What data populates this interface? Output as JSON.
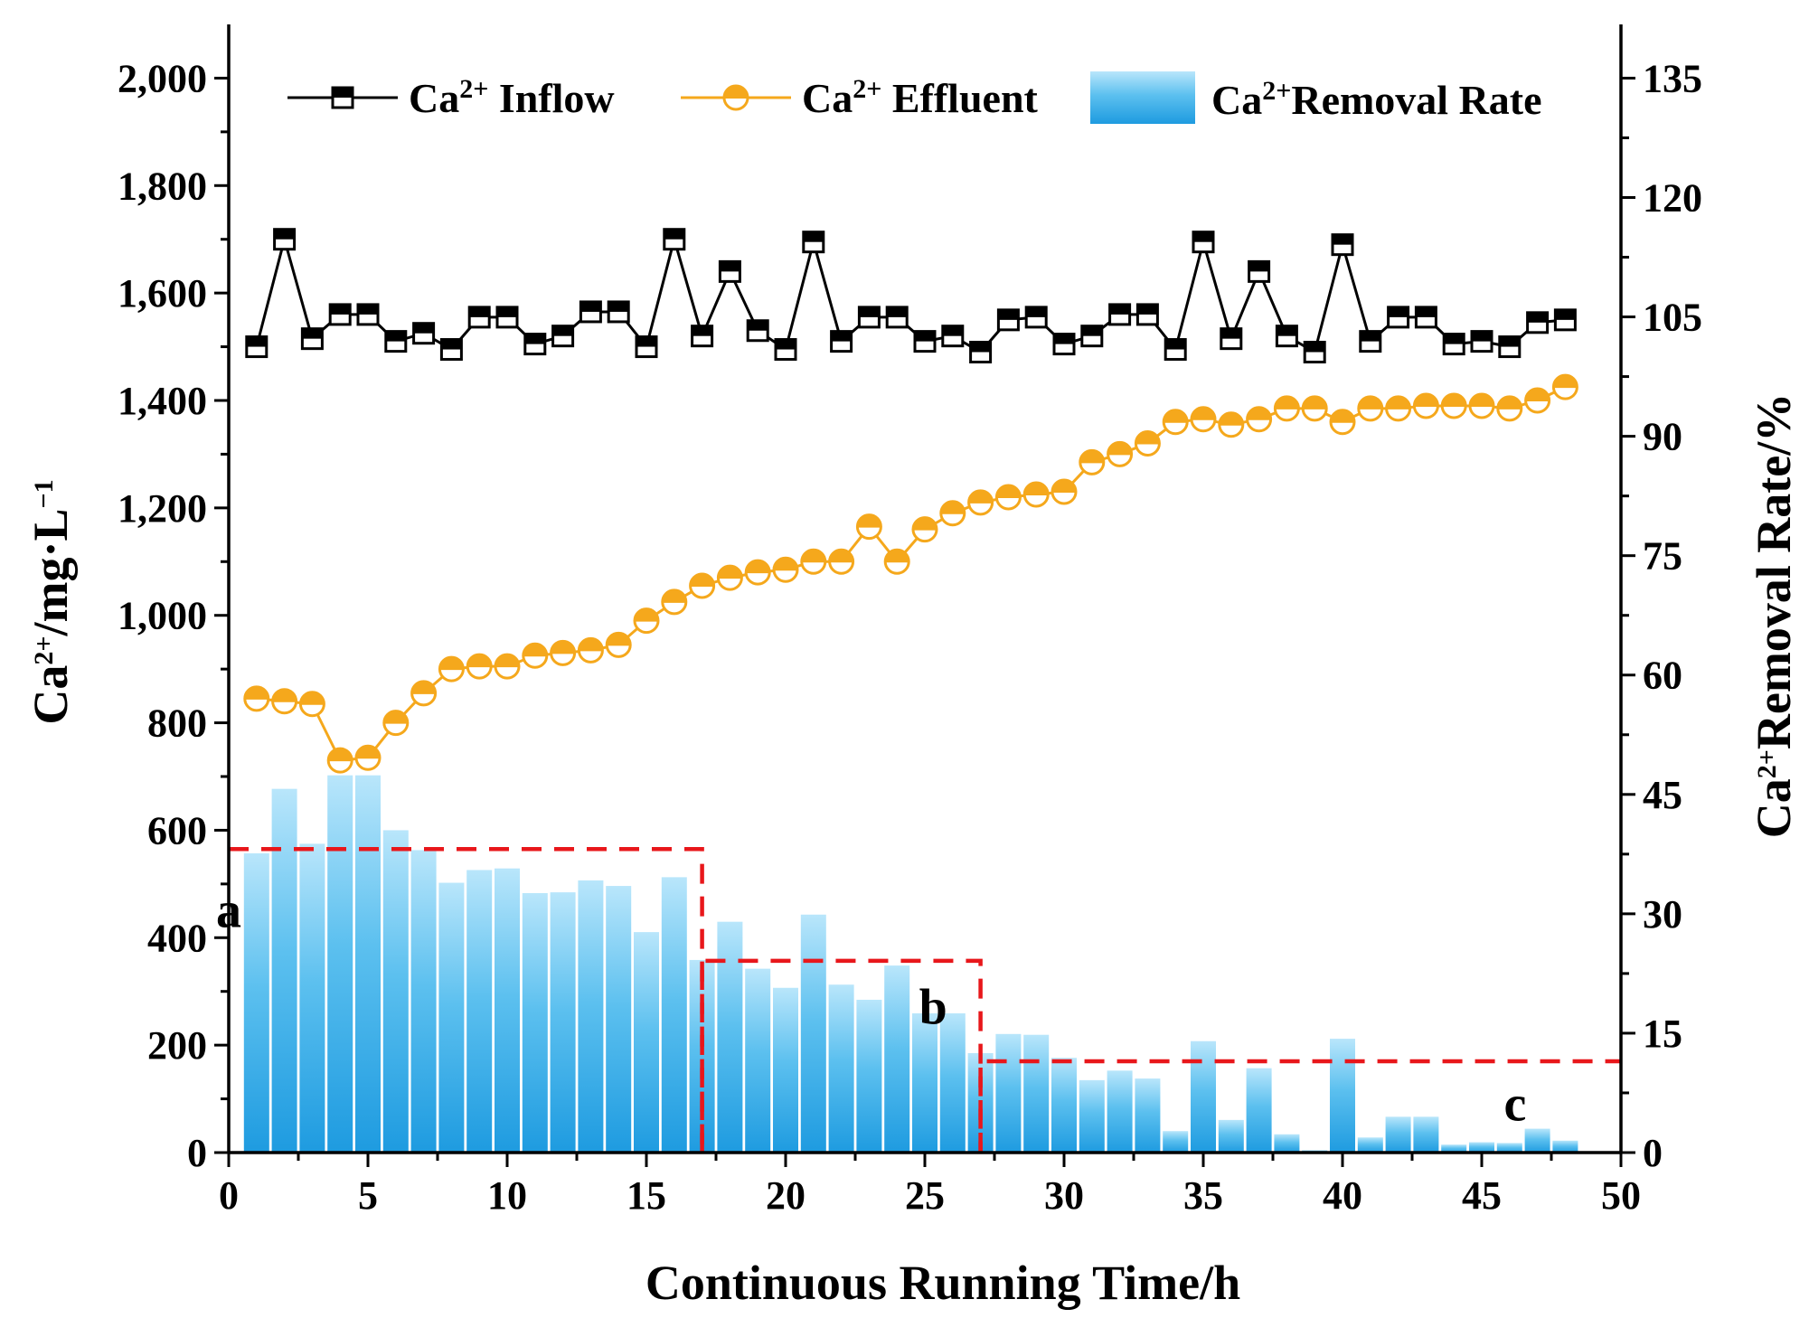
{
  "chart_data": {
    "type": "bar+line",
    "xlabel": "Continuous Running Time/h",
    "ylabel_left": {
      "base": "Ca",
      "sup": "2+",
      "rest": "/mg·L",
      "sup2": "−1"
    },
    "ylabel_right": {
      "base": "Ca",
      "sup": "2+",
      "rest": "Removal Rate/%"
    },
    "xlim": [
      0,
      50
    ],
    "ylim_left": [
      0,
      2100
    ],
    "ylim_right": [
      0,
      141.75
    ],
    "x_ticks": [
      0,
      5,
      10,
      15,
      20,
      25,
      30,
      35,
      40,
      45,
      50
    ],
    "x_tick_labels": [
      "0",
      "5",
      "10",
      "15",
      "20",
      "25",
      "30",
      "35",
      "40",
      "45",
      "50"
    ],
    "y_left_ticks": [
      0,
      200,
      400,
      600,
      800,
      1000,
      1200,
      1400,
      1600,
      1800,
      2000
    ],
    "y_left_tick_labels": [
      "0",
      "200",
      "400",
      "600",
      "800",
      "1,000",
      "1,200",
      "1,400",
      "1,600",
      "1,800",
      "2,000"
    ],
    "y_right_ticks": [
      0,
      15,
      30,
      45,
      60,
      75,
      90,
      105,
      120,
      135
    ],
    "y_right_tick_labels": [
      "0",
      "15",
      "30",
      "45",
      "60",
      "75",
      "90",
      "105",
      "120",
      "135"
    ],
    "x": [
      1,
      2,
      3,
      4,
      5,
      6,
      7,
      8,
      9,
      10,
      11,
      12,
      13,
      14,
      15,
      16,
      17,
      18,
      19,
      20,
      21,
      22,
      23,
      24,
      25,
      26,
      27,
      28,
      29,
      30,
      31,
      32,
      33,
      34,
      35,
      36,
      37,
      38,
      39,
      40,
      41,
      42,
      43,
      44,
      45,
      46,
      47,
      48
    ],
    "series": [
      {
        "name": "Ca2+ Inflow",
        "legend": {
          "base": "Ca",
          "sup": "2+",
          "rest": " Inflow"
        },
        "type": "line",
        "axis": "left",
        "color": "#000000",
        "values": [
          1500,
          1700,
          1515,
          1560,
          1560,
          1510,
          1525,
          1495,
          1555,
          1555,
          1505,
          1520,
          1565,
          1565,
          1500,
          1700,
          1520,
          1640,
          1530,
          1495,
          1695,
          1510,
          1555,
          1555,
          1510,
          1520,
          1490,
          1550,
          1555,
          1505,
          1520,
          1560,
          1560,
          1495,
          1695,
          1515,
          1640,
          1520,
          1490,
          1690,
          1510,
          1555,
          1555,
          1505,
          1510,
          1500,
          1545,
          1550
        ]
      },
      {
        "name": "Ca2+ Effluent",
        "legend": {
          "base": "Ca",
          "sup": "2+",
          "rest": " Effluent"
        },
        "type": "line",
        "axis": "left",
        "color": "#f5a81c",
        "values": [
          845,
          840,
          835,
          730,
          735,
          800,
          855,
          900,
          905,
          905,
          925,
          930,
          935,
          945,
          990,
          1025,
          1055,
          1070,
          1080,
          1085,
          1100,
          1100,
          1165,
          1100,
          1160,
          1190,
          1210,
          1220,
          1225,
          1230,
          1285,
          1300,
          1320,
          1360,
          1365,
          1355,
          1365,
          1385,
          1385,
          1360,
          1385,
          1385,
          1390,
          1390,
          1390,
          1385,
          1400,
          1425
        ]
      },
      {
        "name": "Ca2+Removal Rate",
        "legend": {
          "base": "Ca",
          "sup": "2+",
          "rest": "Removal Rate"
        },
        "type": "bar",
        "axis": "right",
        "color": "#1e9be0",
        "values": [
          37.6,
          45.7,
          38.8,
          47.4,
          47.4,
          40.5,
          38.0,
          33.9,
          35.5,
          35.7,
          32.6,
          32.7,
          34.2,
          33.5,
          27.7,
          34.6,
          24.2,
          29.0,
          23.1,
          20.7,
          29.9,
          21.1,
          19.2,
          23.5,
          17.5,
          17.5,
          12.5,
          14.9,
          14.8,
          11.9,
          9.1,
          10.3,
          9.3,
          2.7,
          14.0,
          4.1,
          10.6,
          2.3,
          0.3,
          14.3,
          1.9,
          4.5,
          4.5,
          1.0,
          1.3,
          1.2,
          3.0,
          1.5
        ]
      }
    ],
    "regions": [
      {
        "label": "a",
        "x_start": 0,
        "x_end": 17,
        "y_level": 565
      },
      {
        "label": "b",
        "x_start": 17,
        "x_end": 27,
        "y_level": 357
      },
      {
        "label": "c",
        "x_start": 27,
        "x_end": 50,
        "y_level": 170
      }
    ],
    "legend_position": "top"
  }
}
